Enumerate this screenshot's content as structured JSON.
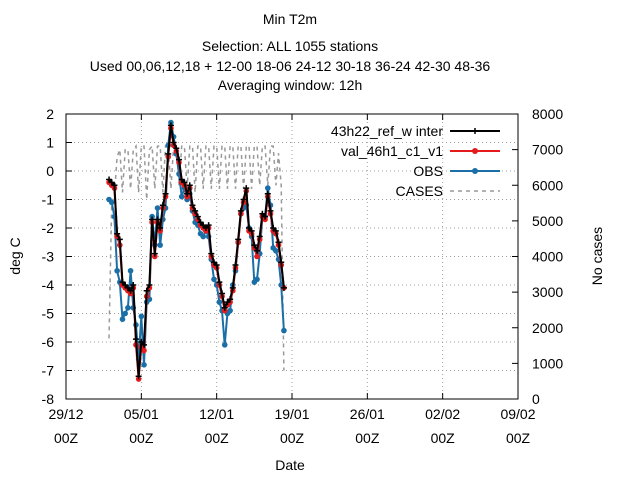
{
  "chart_data": {
    "type": "line",
    "title_lines": [
      "Min T2m",
      "Selection: ALL    1055 stations",
      "Used  00,06,12,18  + 12-00 18-06 24-12 30-18 36-24 42-30 48-36",
      "Averaging window: 12h"
    ],
    "xlabel": "Date",
    "ylabel": "deg C",
    "y2label": "No cases",
    "xlim": [
      "2024-12-29T00:00",
      "2025-02-09T00:00"
    ],
    "ylim": [
      -8,
      2
    ],
    "y2lim": [
      0,
      8000
    ],
    "x_ticks": [
      {
        "t": "2024-12-29T00:00",
        "line1": "29/12",
        "line2": "00Z"
      },
      {
        "t": "2025-01-05T00:00",
        "line1": "05/01",
        "line2": "00Z"
      },
      {
        "t": "2025-01-12T00:00",
        "line1": "12/01",
        "line2": "00Z"
      },
      {
        "t": "2025-01-19T00:00",
        "line1": "19/01",
        "line2": "00Z"
      },
      {
        "t": "2025-01-26T00:00",
        "line1": "26/01",
        "line2": "00Z"
      },
      {
        "t": "2025-02-02T00:00",
        "line1": "02/02",
        "line2": "00Z"
      },
      {
        "t": "2025-02-09T00:00",
        "line1": "09/02",
        "line2": "00Z"
      }
    ],
    "y_ticks": [
      "2",
      "1",
      "0",
      "-1",
      "-2",
      "-3",
      "-4",
      "-5",
      "-6",
      "-7",
      "-8"
    ],
    "y2_ticks": [
      "8000",
      "7000",
      "6000",
      "5000",
      "4000",
      "3000",
      "2000",
      "1000",
      "0"
    ],
    "grid": true,
    "legend_position": "top-right",
    "x_start": "2025-01-02T00:00",
    "x_step_hours": 6,
    "series": [
      {
        "name": "43h22_ref_winter",
        "legend_label": "43h22_ref_w inter",
        "color": "#000000",
        "marker": "plus",
        "values": [
          -0.3,
          -0.4,
          -0.5,
          -2.2,
          -2.4,
          -3.9,
          -4.0,
          -4.1,
          -4.2,
          -4.0,
          -5.9,
          -7.2,
          -6.0,
          -6.1,
          -4.2,
          -4.0,
          -1.7,
          -2.9,
          -1.7,
          -2.0,
          -1.2,
          -0.8,
          0.6,
          1.6,
          1.0,
          0.8,
          0.4,
          -0.3,
          -0.4,
          -0.8,
          -0.5,
          -1.2,
          -1.4,
          -1.6,
          -1.8,
          -1.9,
          -2.0,
          -1.9,
          -2.9,
          -3.2,
          -3.3,
          -3.9,
          -4.3,
          -4.8,
          -4.6,
          -4.5,
          -4.1,
          -3.3,
          -2.4,
          -1.4,
          -1.0,
          -0.6,
          -2.0,
          -2.1,
          -2.6,
          -2.8,
          -2.3,
          -1.5,
          -1.6,
          -0.8,
          -1.4,
          -2.0,
          -2.1,
          -2.5,
          -3.2,
          -4.1
        ]
      },
      {
        "name": "val_46h1_c1_v1",
        "legend_label": "val_46h1_c1_v1",
        "color": "#e41a1c",
        "marker": "circle",
        "values": [
          -0.4,
          -0.5,
          -0.6,
          -2.3,
          -2.6,
          -4.0,
          -4.1,
          -4.2,
          -4.3,
          -4.1,
          -6.1,
          -7.3,
          -6.2,
          -6.3,
          -4.4,
          -4.1,
          -1.8,
          -3.0,
          -1.8,
          -2.1,
          -1.3,
          -0.9,
          0.5,
          1.5,
          0.9,
          0.7,
          0.3,
          -0.4,
          -0.5,
          -0.9,
          -0.6,
          -1.3,
          -1.5,
          -1.7,
          -1.9,
          -2.0,
          -2.1,
          -2.0,
          -3.0,
          -3.3,
          -3.4,
          -4.0,
          -4.4,
          -4.9,
          -4.7,
          -4.6,
          -4.2,
          -3.4,
          -2.5,
          -1.5,
          -1.1,
          -0.7,
          -2.1,
          -2.2,
          -2.7,
          -3.0,
          -2.4,
          -1.6,
          -1.7,
          -0.9,
          -1.5,
          -2.1,
          -2.2,
          -2.6,
          -3.3,
          -4.1
        ]
      },
      {
        "name": "OBS",
        "legend_label": "OBS",
        "color": "#1a6fa6",
        "marker": "circle",
        "values": [
          -1.0,
          -1.1,
          -1.6,
          -3.5,
          -3.9,
          -5.2,
          -5.0,
          -4.8,
          -3.5,
          -4.8,
          -5.4,
          -6.6,
          -5.1,
          -6.8,
          -4.6,
          -4.5,
          -1.6,
          -2.6,
          -1.3,
          -2.6,
          -1.7,
          -1.3,
          0.9,
          1.7,
          1.2,
          0.6,
          -0.1,
          -0.9,
          -0.6,
          -1.0,
          -0.8,
          -1.4,
          -1.8,
          -1.9,
          -2.2,
          -2.3,
          -2.1,
          -2.3,
          -3.1,
          -3.8,
          -4.0,
          -4.6,
          -4.9,
          -6.1,
          -5.0,
          -4.9,
          -4.0,
          -3.5,
          -2.5,
          -1.5,
          -1.3,
          -1.2,
          -2.0,
          -2.3,
          -3.9,
          -3.8,
          -2.9,
          -1.6,
          -1.6,
          -0.6,
          -1.2,
          -2.7,
          -2.8,
          -3.1,
          -4.0,
          -5.6
        ]
      },
      {
        "name": "CASES",
        "legend_label": "CASES",
        "color": "#999999",
        "axis": "y2",
        "dashed": true,
        "values": [
          1700,
          5500,
          5700,
          6800,
          7000,
          5800,
          7000,
          7000,
          5900,
          7000,
          7100,
          5800,
          7100,
          7100,
          5600,
          7000,
          7100,
          5900,
          7100,
          7100,
          5800,
          7100,
          7100,
          5900,
          7100,
          7100,
          6000,
          7100,
          7100,
          5900,
          7100,
          7100,
          5800,
          7100,
          7100,
          5900,
          7100,
          7100,
          5900,
          7100,
          7100,
          5900,
          7100,
          7100,
          5900,
          7100,
          7100,
          5900,
          7100,
          7100,
          5900,
          7100,
          7100,
          5900,
          7100,
          7100,
          6000,
          7100,
          7100,
          6000,
          7100,
          7100,
          6000,
          6900,
          6000,
          800
        ]
      }
    ]
  }
}
